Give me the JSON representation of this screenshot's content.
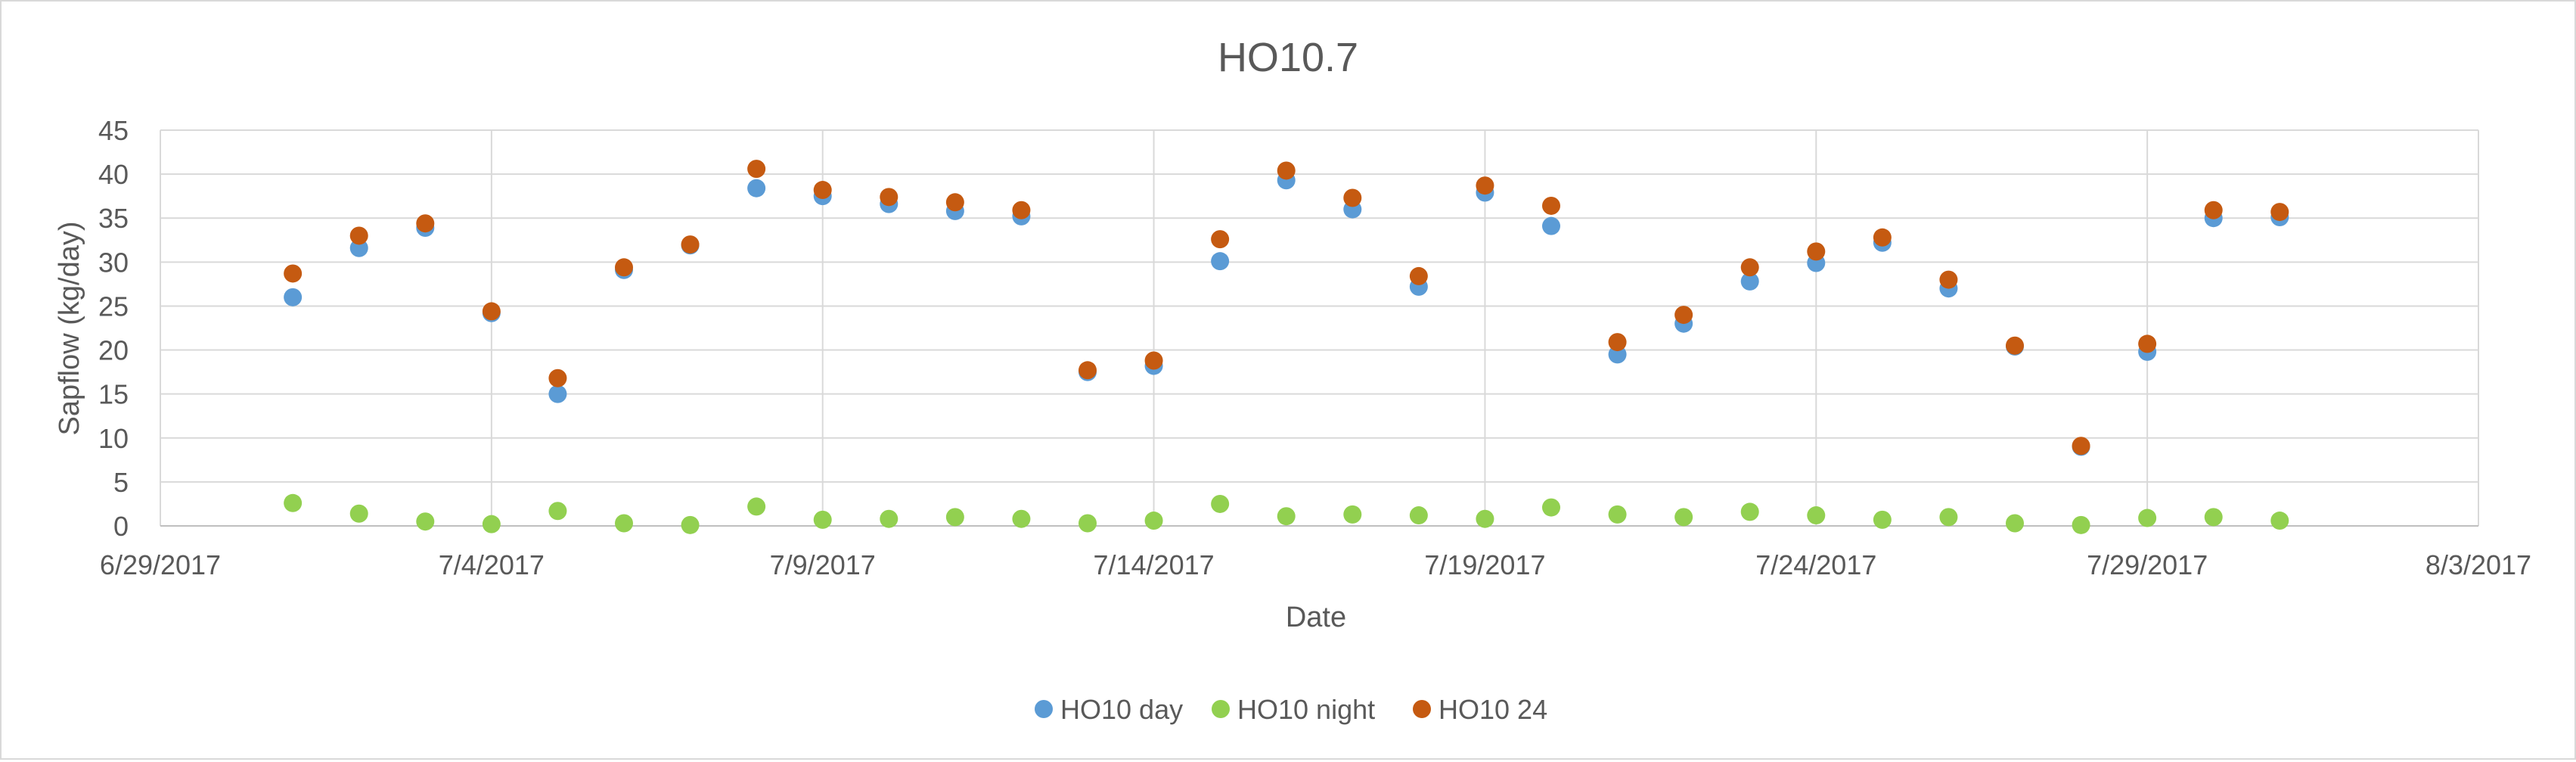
{
  "chart_data": {
    "type": "scatter",
    "title": "HO10.7",
    "xlabel": "Date",
    "ylabel": "Sapflow (kg/day)",
    "x_axis": {
      "type": "date",
      "min": "2017-06-29",
      "max": "2017-08-03",
      "major_unit_days": 5,
      "tick_labels": [
        "6/29/2017",
        "7/4/2017",
        "7/9/2017",
        "7/14/2017",
        "7/19/2017",
        "7/24/2017",
        "7/29/2017",
        "8/3/2017"
      ]
    },
    "y_axis": {
      "min": 0,
      "max": 45,
      "major_unit": 5,
      "tick_labels": [
        "0",
        "5",
        "10",
        "15",
        "20",
        "25",
        "30",
        "35",
        "40",
        "45"
      ]
    },
    "grid": {
      "horizontal": true,
      "vertical": true
    },
    "legend": {
      "position": "bottom"
    },
    "x": [
      "2017-07-01",
      "2017-07-02",
      "2017-07-03",
      "2017-07-04",
      "2017-07-05",
      "2017-07-06",
      "2017-07-07",
      "2017-07-08",
      "2017-07-09",
      "2017-07-10",
      "2017-07-11",
      "2017-07-12",
      "2017-07-13",
      "2017-07-14",
      "2017-07-15",
      "2017-07-16",
      "2017-07-17",
      "2017-07-18",
      "2017-07-19",
      "2017-07-20",
      "2017-07-21",
      "2017-07-22",
      "2017-07-23",
      "2017-07-24",
      "2017-07-25",
      "2017-07-26",
      "2017-07-27",
      "2017-07-28",
      "2017-07-29",
      "2017-07-30",
      "2017-07-31"
    ],
    "series": [
      {
        "name": "HO10 day",
        "color": "#5b9bd5",
        "values": [
          26.0,
          31.6,
          33.9,
          24.2,
          15.0,
          29.1,
          31.9,
          38.4,
          37.5,
          36.6,
          35.8,
          35.2,
          17.5,
          18.2,
          30.1,
          39.3,
          36.0,
          27.2,
          37.9,
          34.1,
          19.5,
          23.0,
          27.8,
          29.9,
          32.2,
          27.0,
          20.4,
          9.0,
          19.8,
          35.0,
          35.1
        ]
      },
      {
        "name": "HO10 night",
        "color": "#92d050",
        "values": [
          2.6,
          1.4,
          0.5,
          0.2,
          1.7,
          0.3,
          0.1,
          2.2,
          0.7,
          0.8,
          1.0,
          0.8,
          0.3,
          0.6,
          2.5,
          1.1,
          1.3,
          1.2,
          0.8,
          2.1,
          1.3,
          1.0,
          1.6,
          1.2,
          0.7,
          1.0,
          0.3,
          0.1,
          0.9,
          1.0,
          0.6
        ]
      },
      {
        "name": "HO10 24",
        "color": "#c55a11",
        "values": [
          28.7,
          33.0,
          34.4,
          24.4,
          16.8,
          29.4,
          32.0,
          40.6,
          38.2,
          37.4,
          36.8,
          35.9,
          17.7,
          18.8,
          32.6,
          40.4,
          37.3,
          28.4,
          38.7,
          36.4,
          20.9,
          24.0,
          29.4,
          31.2,
          32.8,
          28.0,
          20.5,
          9.1,
          20.7,
          35.9,
          35.7
        ]
      }
    ]
  }
}
